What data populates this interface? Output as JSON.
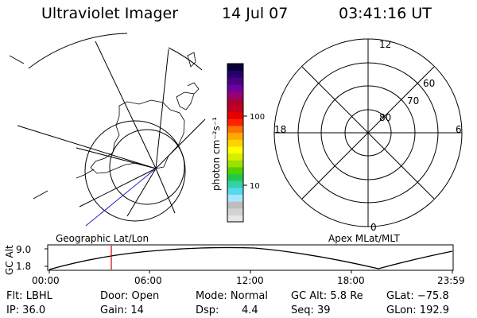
{
  "header": {
    "instrument": "Ultraviolet Imager",
    "date": "14 Jul 07",
    "time": "03:41:16 UT"
  },
  "colorbar": {
    "label": "photon cm⁻²s⁻¹",
    "ticks": [
      "100",
      "10"
    ],
    "colors": [
      "#e6e6e6",
      "#d2d2d2",
      "#bdbdbd",
      "#a5e5ff",
      "#59d9e8",
      "#32d2a8",
      "#22c84a",
      "#50d200",
      "#9ce100",
      "#d4ef00",
      "#ffff00",
      "#ffd200",
      "#ffaa00",
      "#ff7200",
      "#ff2200",
      "#e60000",
      "#c3001e",
      "#aa0032",
      "#960078",
      "#6e00a0",
      "#4b0082",
      "#28006e",
      "#0a0037"
    ]
  },
  "polar": {
    "mlt_labels": {
      "top": "12",
      "left": "18",
      "right": "6",
      "bottom": "0"
    },
    "lat_labels": [
      "60",
      "70",
      "80"
    ]
  },
  "map": {
    "left_label": "Geographic Lat/Lon",
    "right_label": "Apex MLat/MLT"
  },
  "altplot": {
    "ylabel": "GC Alt",
    "yticks": [
      "9.0",
      "1.8"
    ],
    "xticks": [
      "00:00",
      "06:00",
      "12:00",
      "18:00",
      "23:59"
    ],
    "current_time_hours": 3.69,
    "accent_color": "#cc0000"
  },
  "info": {
    "flt": "Flt: LBHL",
    "door": "Door: Open",
    "mode": "Mode: Normal",
    "gcalt": "GC Alt: 5.8 Re",
    "glat": "GLat: −75.8",
    "ip": "IP: 36.0",
    "gain": "Gain: 14",
    "dsp_label": "Dsp:",
    "dsp_value": "4.4",
    "seq": "Seq: 39",
    "glon": "GLon: 192.9"
  }
}
